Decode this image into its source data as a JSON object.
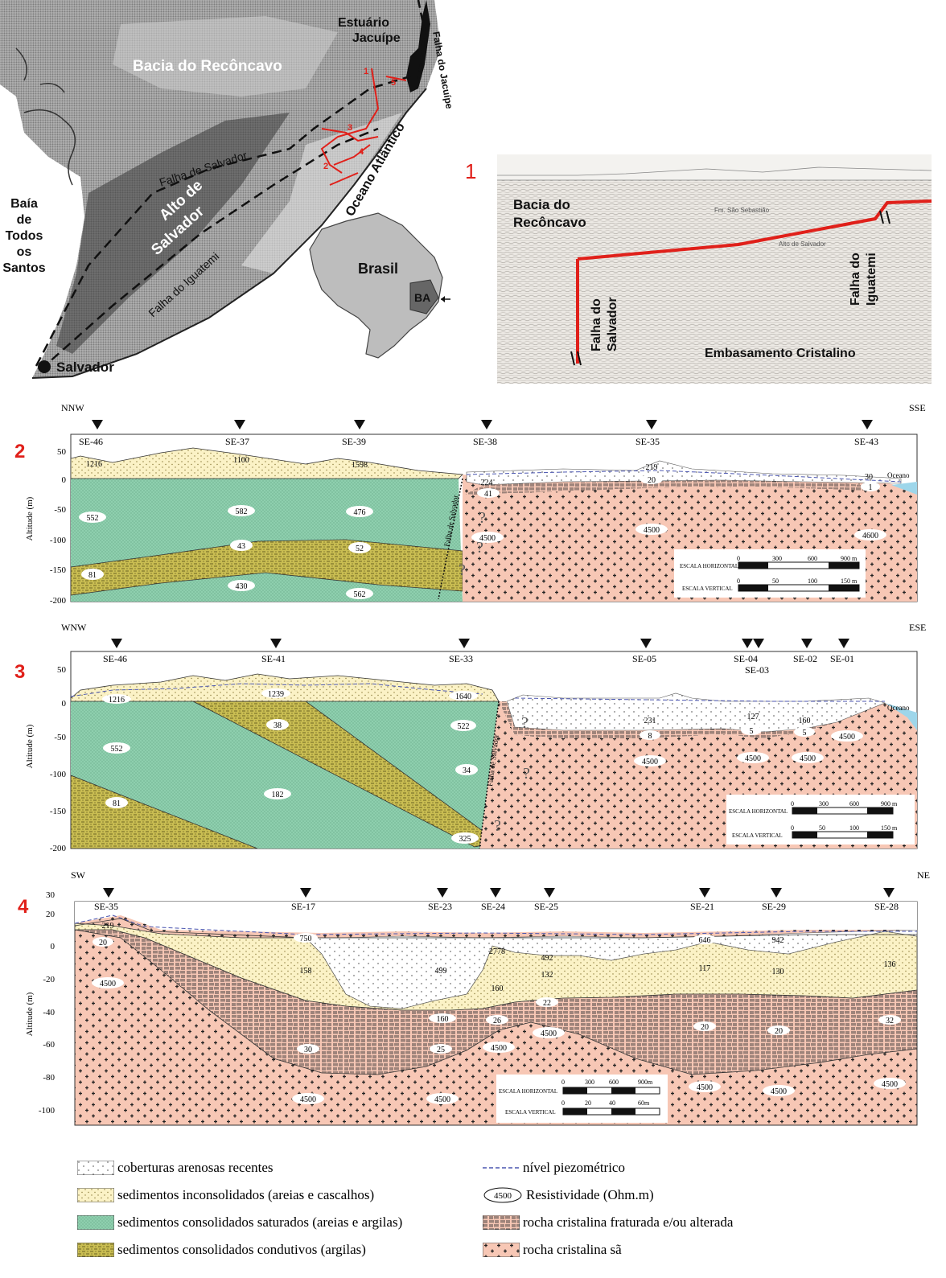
{
  "map": {
    "labels": {
      "estuario": "Estuário",
      "jacuipe": "Jacuípe",
      "falha_jacuipe": "Falha do Jacuípe",
      "bacia": "Bacia do Recôncavo",
      "baia1": "Baía",
      "baia2": "de",
      "baia3": "Todos",
      "baia4": "os",
      "baia5": "Santos",
      "alto1": "Alto de",
      "alto2": "Salvador",
      "falha_salvador": "Falha de Salvador",
      "falha_iguatemi": "Falha do Iguatemi",
      "oceano": "Oceano Atlântico",
      "salvador": "Salvador",
      "brasil": "Brasil",
      "ba": "BA"
    },
    "profile_numbers": [
      "1",
      "2",
      "3",
      "4",
      "5"
    ]
  },
  "seismic": {
    "panel_number": "1",
    "bacia1": "Bacia do",
    "bacia2": "Recôncavo",
    "falha_salvador1": "Falha do",
    "falha_salvador2": "Salvador",
    "falha_iguatemi1": "Falha do",
    "falha_iguatemi2": "Iguatemi",
    "embasamento": "Embasamento Cristalino",
    "fm": "Fm. São Sebastião",
    "alto": "Alto de Salvador"
  },
  "section2": {
    "number": "2",
    "left_dir": "NNW",
    "right_dir": "SSE",
    "stations": [
      "SE-46",
      "SE-37",
      "SE-39",
      "SE-38",
      "SE-35",
      "SE-43"
    ],
    "yticks": [
      "50",
      "0",
      "-50",
      "-100",
      "-150",
      "-200"
    ],
    "ylabel": "Altitude (m)",
    "values": [
      "1216",
      "1100",
      "1598",
      "224",
      "41",
      "219",
      "20",
      "30",
      "1",
      "552",
      "582",
      "476",
      "43",
      "52",
      "81",
      "430",
      "562",
      "4500",
      "4500",
      "4600"
    ],
    "oceano": "Oceano",
    "fault": "Falha de Salvador",
    "scale_h": "ESCALA HORIZONTAL",
    "scale_v": "ESCALA VERTICAL",
    "scale_h_ticks": [
      "0",
      "300",
      "600",
      "900 m"
    ],
    "scale_v_ticks": [
      "0",
      "50",
      "100",
      "150 m"
    ]
  },
  "section3": {
    "number": "3",
    "left_dir": "WNW",
    "right_dir": "ESE",
    "stations": [
      "SE-46",
      "SE-41",
      "SE-33",
      "SE-05",
      "SE-04",
      "SE-03",
      "SE-02",
      "SE-01"
    ],
    "yticks": [
      "50",
      "0",
      "-50",
      "-100",
      "-150",
      "-200"
    ],
    "ylabel": "Altitude (m)",
    "values": [
      "1216",
      "1239",
      "1640",
      "522",
      "38",
      "552",
      "34",
      "81",
      "182",
      "325",
      "231",
      "8",
      "127",
      "5",
      "160",
      "5",
      "4500",
      "4500",
      "4500",
      "4500"
    ],
    "oceano": "Oceano",
    "fault": "Falha de Salvador",
    "scale_h": "ESCALA HORIZONTAL",
    "scale_v": "ESCALA VERTICAL",
    "scale_h_ticks": [
      "0",
      "300",
      "600",
      "900 m"
    ],
    "scale_v_ticks": [
      "0",
      "50",
      "100",
      "150 m"
    ]
  },
  "section4": {
    "number": "4",
    "left_dir": "SW",
    "right_dir": "NE",
    "stations": [
      "SE-35",
      "SE-17",
      "SE-23",
      "SE-24",
      "SE-25",
      "SE-21",
      "SE-29",
      "SE-28"
    ],
    "yticks": [
      "30",
      "20",
      "0",
      "-20",
      "-40",
      "-60",
      "-80",
      "-100"
    ],
    "ylabel": "Altitude (m)",
    "values": [
      "219",
      "20",
      "4500",
      "750",
      "158",
      "499",
      "2778",
      "492",
      "160",
      "132",
      "22",
      "160",
      "26",
      "4500",
      "4500",
      "25",
      "30",
      "646",
      "942",
      "117",
      "130",
      "136",
      "20",
      "20",
      "32",
      "4500",
      "4500",
      "4500",
      "4500",
      "4500"
    ],
    "scale_h": "ESCALA HORIZONTAL",
    "scale_v": "ESCALA VERTICAL",
    "scale_h_ticks": [
      "0",
      "300",
      "600",
      "900m"
    ],
    "scale_v_ticks": [
      "0",
      "20",
      "40",
      "60m"
    ]
  },
  "legend": {
    "items": [
      "coberturas arenosas recentes",
      "sedimentos inconsolidados (areias e cascalhos)",
      "sedimentos consolidados saturados (areias e argilas)",
      "sedimentos consolidados condutivos (argilas)",
      "nível piezométrico",
      "Resistividade (Ohm.m)",
      "rocha cristalina fraturada e/ou alterada",
      "rocha cristalina sã"
    ],
    "resist_example": "4500"
  },
  "colors": {
    "cover": "#ffffff",
    "unconsolidated": "#fbf2c6",
    "saturated": "#8ecfae",
    "conductive": "#c9bd52",
    "rock": "#f7c7b5",
    "ocean": "#9ed6ea",
    "red": "#e0201a"
  }
}
